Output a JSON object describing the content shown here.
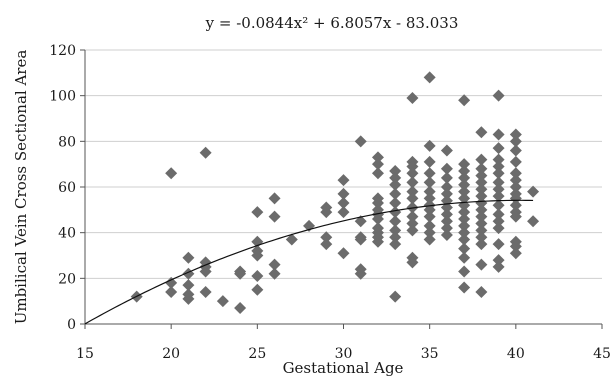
{
  "chart_data": {
    "type": "scatter",
    "equation": "y = -0.0844x² + 6.8057x - 83.033",
    "xlabel": "Gestational Age",
    "ylabel": "Umbilical Vein Cross Sectional Area",
    "xlim": [
      15,
      45
    ],
    "ylim": [
      0,
      120
    ],
    "xticks": [
      15,
      20,
      25,
      30,
      35,
      40,
      45
    ],
    "yticks": [
      0,
      20,
      40,
      60,
      80,
      100,
      120
    ],
    "grid": "horizontal",
    "marker": "diamond",
    "colors": {
      "points": "#6b6b6b",
      "trendline": "#111111",
      "grid": "#cfcfcf"
    },
    "trendline": {
      "type": "polynomial",
      "coefficients": [
        -0.0844,
        6.8057,
        -83.033
      ],
      "x_range": [
        15,
        41
      ]
    },
    "points": [
      [
        18,
        12
      ],
      [
        20,
        66
      ],
      [
        20,
        18
      ],
      [
        20,
        14
      ],
      [
        21,
        29
      ],
      [
        21,
        22
      ],
      [
        21,
        17
      ],
      [
        21,
        13
      ],
      [
        21,
        11
      ],
      [
        22,
        75
      ],
      [
        22,
        27
      ],
      [
        22,
        25
      ],
      [
        22,
        23
      ],
      [
        22,
        14
      ],
      [
        23,
        10
      ],
      [
        24,
        23
      ],
      [
        24,
        22
      ],
      [
        24,
        7
      ],
      [
        25,
        49
      ],
      [
        25,
        36
      ],
      [
        25,
        32
      ],
      [
        25,
        30
      ],
      [
        25,
        21
      ],
      [
        25,
        15
      ],
      [
        26,
        55
      ],
      [
        26,
        47
      ],
      [
        26,
        26
      ],
      [
        26,
        22
      ],
      [
        27,
        37
      ],
      [
        28,
        43
      ],
      [
        29,
        51
      ],
      [
        29,
        49
      ],
      [
        29,
        38
      ],
      [
        29,
        35
      ],
      [
        30,
        63
      ],
      [
        30,
        57
      ],
      [
        30,
        53
      ],
      [
        30,
        49
      ],
      [
        30,
        31
      ],
      [
        31,
        80
      ],
      [
        31,
        45
      ],
      [
        31,
        38
      ],
      [
        31,
        37
      ],
      [
        31,
        24
      ],
      [
        31,
        22
      ],
      [
        32,
        73
      ],
      [
        32,
        70
      ],
      [
        32,
        66
      ],
      [
        32,
        55
      ],
      [
        32,
        53
      ],
      [
        32,
        50
      ],
      [
        32,
        48
      ],
      [
        32,
        46
      ],
      [
        32,
        42
      ],
      [
        32,
        40
      ],
      [
        32,
        38
      ],
      [
        32,
        36
      ],
      [
        33,
        67
      ],
      [
        33,
        64
      ],
      [
        33,
        61
      ],
      [
        33,
        57
      ],
      [
        33,
        53
      ],
      [
        33,
        49
      ],
      [
        33,
        45
      ],
      [
        33,
        41
      ],
      [
        33,
        38
      ],
      [
        33,
        35
      ],
      [
        33,
        12
      ],
      [
        34,
        99
      ],
      [
        34,
        71
      ],
      [
        34,
        69
      ],
      [
        34,
        66
      ],
      [
        34,
        62
      ],
      [
        34,
        58
      ],
      [
        34,
        55
      ],
      [
        34,
        51
      ],
      [
        34,
        47
      ],
      [
        34,
        44
      ],
      [
        34,
        41
      ],
      [
        34,
        29
      ],
      [
        34,
        27
      ],
      [
        35,
        108
      ],
      [
        35,
        78
      ],
      [
        35,
        71
      ],
      [
        35,
        66
      ],
      [
        35,
        62
      ],
      [
        35,
        58
      ],
      [
        35,
        55
      ],
      [
        35,
        52
      ],
      [
        35,
        50
      ],
      [
        35,
        47
      ],
      [
        35,
        43
      ],
      [
        35,
        40
      ],
      [
        35,
        37
      ],
      [
        36,
        76
      ],
      [
        36,
        68
      ],
      [
        36,
        64
      ],
      [
        36,
        60
      ],
      [
        36,
        57
      ],
      [
        36,
        54
      ],
      [
        36,
        51
      ],
      [
        36,
        48
      ],
      [
        36,
        45
      ],
      [
        36,
        42
      ],
      [
        36,
        39
      ],
      [
        37,
        98
      ],
      [
        37,
        70
      ],
      [
        37,
        67
      ],
      [
        37,
        64
      ],
      [
        37,
        61
      ],
      [
        37,
        58
      ],
      [
        37,
        55
      ],
      [
        37,
        52
      ],
      [
        37,
        49
      ],
      [
        37,
        46
      ],
      [
        37,
        43
      ],
      [
        37,
        40
      ],
      [
        37,
        37
      ],
      [
        37,
        33
      ],
      [
        37,
        29
      ],
      [
        37,
        23
      ],
      [
        37,
        16
      ],
      [
        38,
        84
      ],
      [
        38,
        72
      ],
      [
        38,
        68
      ],
      [
        38,
        65
      ],
      [
        38,
        62
      ],
      [
        38,
        59
      ],
      [
        38,
        56
      ],
      [
        38,
        53
      ],
      [
        38,
        50
      ],
      [
        38,
        47
      ],
      [
        38,
        44
      ],
      [
        38,
        41
      ],
      [
        38,
        38
      ],
      [
        38,
        35
      ],
      [
        38,
        26
      ],
      [
        38,
        14
      ],
      [
        39,
        100
      ],
      [
        39,
        83
      ],
      [
        39,
        77
      ],
      [
        39,
        72
      ],
      [
        39,
        69
      ],
      [
        39,
        66
      ],
      [
        39,
        62
      ],
      [
        39,
        59
      ],
      [
        39,
        56
      ],
      [
        39,
        52
      ],
      [
        39,
        48
      ],
      [
        39,
        45
      ],
      [
        39,
        42
      ],
      [
        39,
        35
      ],
      [
        39,
        28
      ],
      [
        39,
        25
      ],
      [
        40,
        83
      ],
      [
        40,
        80
      ],
      [
        40,
        76
      ],
      [
        40,
        71
      ],
      [
        40,
        66
      ],
      [
        40,
        63
      ],
      [
        40,
        60
      ],
      [
        40,
        57
      ],
      [
        40,
        55
      ],
      [
        40,
        52
      ],
      [
        40,
        49
      ],
      [
        40,
        47
      ],
      [
        40,
        36
      ],
      [
        40,
        34
      ],
      [
        40,
        31
      ],
      [
        41,
        58
      ],
      [
        41,
        45
      ]
    ]
  }
}
